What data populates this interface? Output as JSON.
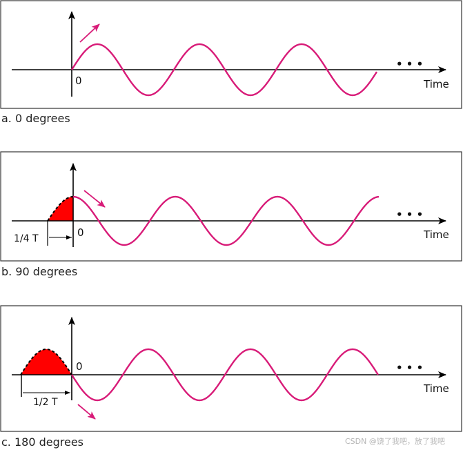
{
  "panels": [
    {
      "caption": "a. 0 degrees",
      "axis_label": "Time",
      "origin_label": "0",
      "ellipsis": "• • •",
      "phase_degrees": 0,
      "offset_label": "",
      "arrow_direction": "up"
    },
    {
      "caption": "b. 90 degrees",
      "axis_label": "Time",
      "origin_label": "0",
      "ellipsis": "• • •",
      "phase_degrees": 90,
      "offset_label": "1/4 T",
      "arrow_direction": "down"
    },
    {
      "caption": "c. 180 degrees",
      "axis_label": "Time",
      "origin_label": "0",
      "ellipsis": "• • •",
      "phase_degrees": 180,
      "offset_label": "1/2 T",
      "arrow_direction": "down"
    }
  ],
  "watermark": "CSDN @饶了我吧，放了我吧",
  "colors": {
    "wave": "#d81b78",
    "fill": "#ff0000",
    "axis": "#000000",
    "frame": "#333333"
  }
}
